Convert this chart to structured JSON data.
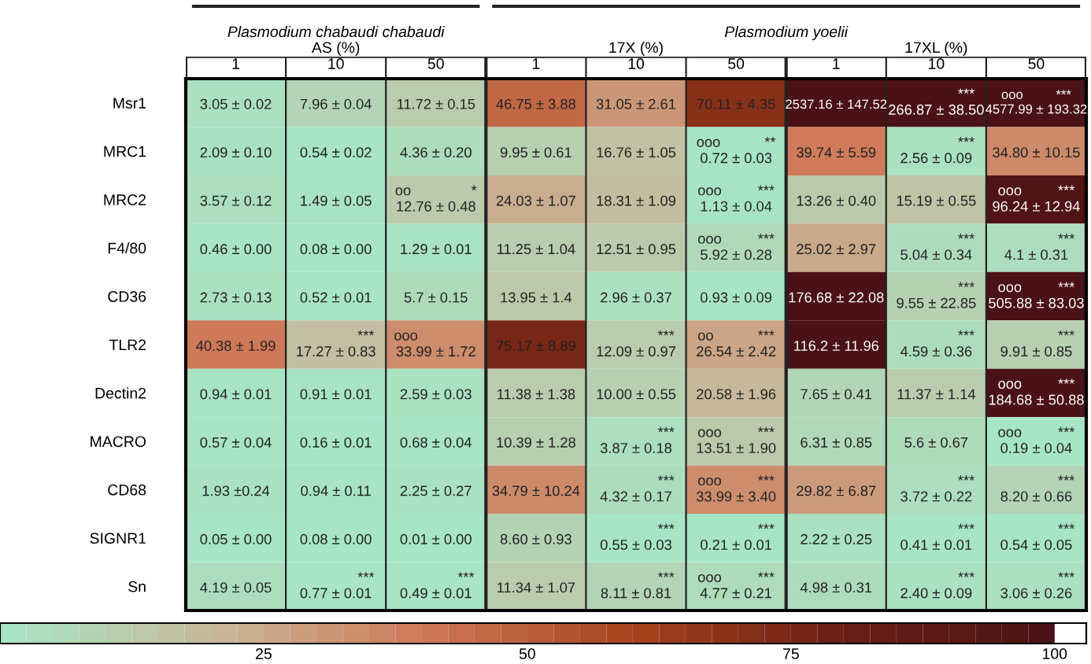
{
  "chart_data": {
    "type": "heatmap",
    "categories": [
      "1",
      "10",
      "50",
      "1",
      "10",
      "50",
      "1",
      "10",
      "50"
    ],
    "y_categories": [
      "Msr1",
      "MRC1",
      "MRC2",
      "F4/80",
      "CD36",
      "TLR2",
      "Dectin2",
      "MACRO",
      "CD68",
      "SIGNR1",
      "Sn"
    ],
    "annotations": [
      "Plasmodium chabaudi chabaudi",
      "AS (%)",
      "Plasmodium yoelii",
      "17X (%)",
      "17XL (%)"
    ],
    "cells": [
      [
        3.05,
        7.96,
        11.72,
        46.75,
        31.05,
        70.11,
        2537.16,
        266.87,
        4577.99
      ],
      [
        2.09,
        0.54,
        4.36,
        9.95,
        16.76,
        0.72,
        39.74,
        2.56,
        34.8
      ],
      [
        3.57,
        1.49,
        12.76,
        24.03,
        18.31,
        1.13,
        13.26,
        15.19,
        96.24
      ],
      [
        0.46,
        0.08,
        1.29,
        11.25,
        12.51,
        5.92,
        25.02,
        5.04,
        4.1
      ],
      [
        2.73,
        0.52,
        5.7,
        13.95,
        2.96,
        0.93,
        176.68,
        9.55,
        505.88
      ],
      [
        40.38,
        17.27,
        33.99,
        75.17,
        12.09,
        26.54,
        116.2,
        4.59,
        9.91
      ],
      [
        0.94,
        0.91,
        2.59,
        11.38,
        10.0,
        20.58,
        7.65,
        11.37,
        184.68
      ],
      [
        0.57,
        0.16,
        0.68,
        10.39,
        3.87,
        13.51,
        6.31,
        5.6,
        0.19
      ],
      [
        1.93,
        0.94,
        2.25,
        34.79,
        4.32,
        33.99,
        29.82,
        3.72,
        8.2
      ],
      [
        0.05,
        0.08,
        0.01,
        8.6,
        0.55,
        0.21,
        2.22,
        0.41,
        0.54
      ],
      [
        4.19,
        0.77,
        0.49,
        11.34,
        8.11,
        4.77,
        4.98,
        2.4,
        3.06
      ]
    ],
    "cell_labels": [
      [
        "3.05 ± 0.02",
        "7.96 ± 0.04",
        "11.72 ± 0.15",
        "46.75 ± 3.88",
        "31.05 ± 2.61",
        "70.11 ± 4.35",
        "2537.16 ± 147.52",
        " ***\n266.87 ± 38.50",
        "ooo ***\n4577.99 ± 193.32"
      ],
      [
        "2.09 ± 0.10",
        "0.54 ± 0.02",
        "4.36 ± 0.20",
        "9.95 ± 0.61",
        "16.76 ± 1.05",
        "ooo **\n0.72 ± 0.03",
        "39.74 ± 5.59",
        " ***\n2.56 ± 0.09",
        "34.80 ± 10.15"
      ],
      [
        "3.57 ± 0.12",
        "1.49 ± 0.05",
        "oo *\n12.76 ± 0.48",
        "24.03 ± 1.07",
        "18.31 ± 1.09",
        "ooo ***\n1.13 ± 0.04",
        "13.26 ± 0.40",
        "15.19 ± 0.55",
        "ooo ***\n96.24 ± 12.94"
      ],
      [
        "0.46 ± 0.00",
        "0.08 ± 0.00",
        "1.29 ± 0.01",
        "11.25 ± 1.04",
        "12.51 ± 0.95",
        "ooo ***\n5.92 ± 0.28",
        "25.02 ± 2.97",
        " ***\n5.04 ± 0.34",
        " ***\n4.1 ± 0.31"
      ],
      [
        "2.73 ± 0.13",
        "0.52 ± 0.01",
        "5.7 ± 0.15",
        "13.95 ± 1.4",
        "2.96 ± 0.37",
        "0.93 ± 0.09",
        "176.68 ± 22.08",
        " ***\n9.55 ± 22.85",
        "ooo ***\n505.88 ± 83.03"
      ],
      [
        "40.38 ± 1.99",
        " ***\n17.27 ± 0.83",
        "ooo \n33.99 ± 1.72",
        "75.17 ± 8.89",
        " ***\n12.09 ± 0.97",
        "oo ***\n26.54 ± 2.42",
        "116.2 ± 11.96",
        " ***\n4.59 ± 0.36",
        " ***\n9.91 ± 0.85"
      ],
      [
        "0.94 ± 0.01",
        "0.91 ± 0.01",
        "2.59 ± 0.03",
        "11.38 ± 1.38",
        "10.00 ± 0.55",
        "20.58 ± 1.96",
        "7.65 ± 0.41",
        "11.37 ± 1.14",
        "ooo ***\n184.68 ± 50.88"
      ],
      [
        "0.57 ± 0.04",
        "0.16 ± 0.01",
        "0.68 ± 0.04",
        "10.39 ± 1.28",
        " ***\n3.87 ± 0.18",
        "ooo ***\n13.51 ± 1.90",
        "6.31 ± 0.85",
        "5.6 ± 0.67",
        "ooo ***\n0.19 ± 0.04"
      ],
      [
        "1.93 ±0.24",
        "0.94 ± 0.11",
        "2.25 ± 0.27",
        "34.79 ± 10.24",
        " ***\n4.32 ± 0.17",
        "ooo ***\n33.99 ± 3.40",
        "29.82 ± 6.87",
        " ***\n3.72 ± 0.22",
        " ***\n8.20 ± 0.66"
      ],
      [
        "0.05 ± 0.00",
        "0.08 ± 0.00",
        "0.01 ± 0.00",
        "8.60 ± 0.93",
        " ***\n0.55 ± 0.03",
        " ***\n0.21 ± 0.01",
        "2.22 ± 0.25",
        " ***\n0.41 ± 0.01",
        " ***\n0.54 ± 0.05"
      ],
      [
        "4.19 ± 0.05",
        " ***\n0.77 ± 0.01",
        " ***\n0.49 ± 0.01",
        "11.34 ± 1.07",
        " ***\n8.11 ± 0.81",
        "ooo ***\n4.77 ± 0.21",
        "4.98 ± 0.31",
        " ***\n2.40 ± 0.09",
        " ***\n3.06 ± 0.26"
      ]
    ],
    "clim": [
      0,
      100
    ],
    "cticks": [
      25,
      50,
      75,
      100
    ]
  }
}
